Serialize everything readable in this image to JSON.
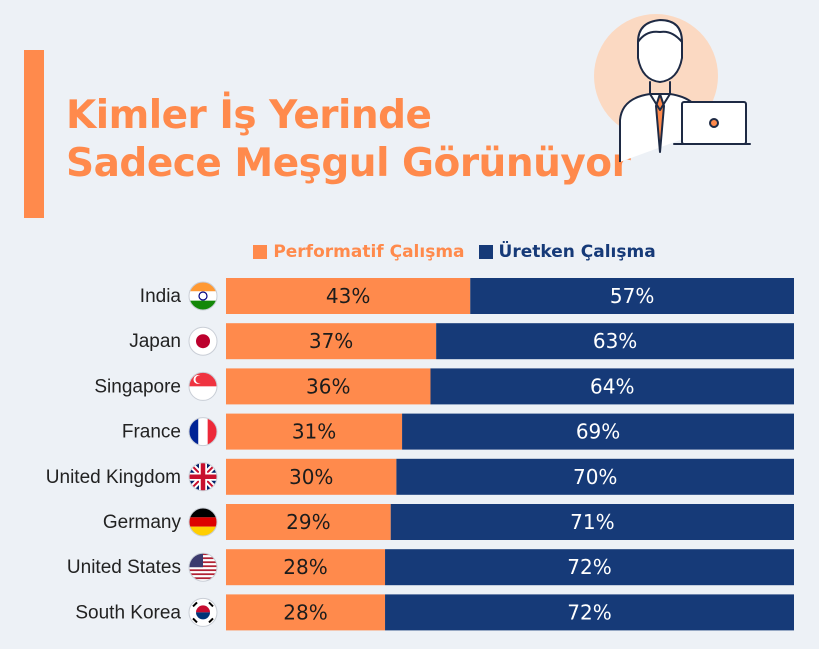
{
  "title": {
    "line1": "Kimler İş Yerinde",
    "line2": "Sadece Meşgul Görünüyor"
  },
  "legend": {
    "performative": "Performatif Çalışma",
    "productive": "Üretken Çalışma"
  },
  "colors": {
    "performative": "#ff8a4c",
    "productive": "#163a78",
    "accent": "#ff8a4c"
  },
  "chart_data": {
    "type": "bar",
    "orientation": "horizontal",
    "stacked": true,
    "categories": [
      "India",
      "Japan",
      "Singapore",
      "France",
      "United Kingdom",
      "Germany",
      "United States",
      "South Korea"
    ],
    "series": [
      {
        "name": "Performatif Çalışma",
        "values": [
          43,
          37,
          36,
          31,
          30,
          29,
          28,
          28
        ]
      },
      {
        "name": "Üretken Çalışma",
        "values": [
          57,
          63,
          64,
          69,
          70,
          71,
          72,
          72
        ]
      }
    ],
    "labels": [
      [
        "43%",
        "57%"
      ],
      [
        "37%",
        "63%"
      ],
      [
        "36%",
        "64%"
      ],
      [
        "31%",
        "69%"
      ],
      [
        "30%",
        "70%"
      ],
      [
        "29%",
        "71%"
      ],
      [
        "28%",
        "72%"
      ],
      [
        "28%",
        "72%"
      ]
    ],
    "flags": [
      "india-flag-icon",
      "japan-flag-icon",
      "singapore-flag-icon",
      "france-flag-icon",
      "uk-flag-icon",
      "germany-flag-icon",
      "usa-flag-icon",
      "south-korea-flag-icon"
    ],
    "xlim": [
      0,
      100
    ],
    "legend_position": "top-center",
    "grid": false
  }
}
